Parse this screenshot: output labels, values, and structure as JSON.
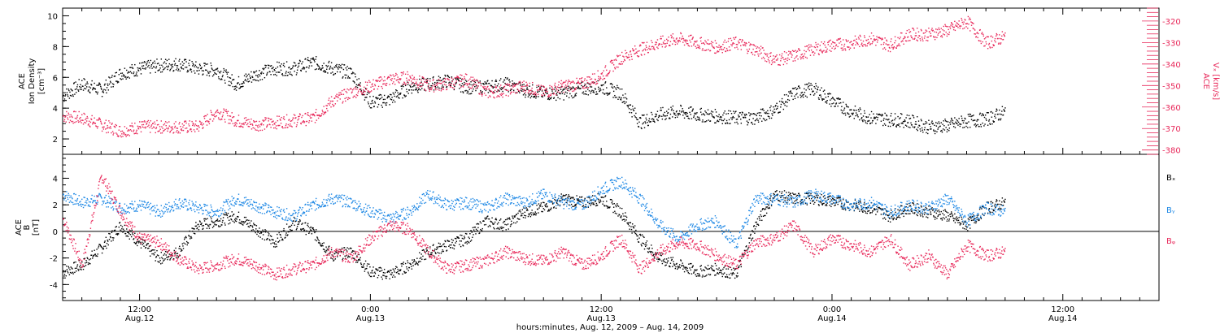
{
  "colors": {
    "black": "#000000",
    "red": "#e8285a",
    "blue": "#1e88e5"
  },
  "footer": "hours:minutes, Aug. 12, 2009 – Aug. 14, 2009",
  "chart_data": [
    {
      "type": "scatter",
      "panel": "top",
      "ylabel_left": [
        "ACE",
        "Ion Density",
        "[cm⁻³]"
      ],
      "ylabel_right": [
        "ACE",
        "Vₓ [km/s]"
      ],
      "ylim_left": [
        1,
        10.5
      ],
      "yticks_left": [
        2,
        4,
        6,
        8,
        10
      ],
      "ylim_right": [
        -382,
        -314
      ],
      "yticks_right": [
        -320,
        -330,
        -340,
        -350,
        -360,
        -370,
        -380
      ],
      "x_range_hours": [
        8,
        65
      ],
      "series": [
        {
          "name": "Ion Density",
          "color": "#000000",
          "axis": "left",
          "x": [
            8,
            9,
            10,
            11,
            12,
            13,
            14,
            15,
            16,
            17,
            18,
            19,
            20,
            21,
            22,
            23,
            24,
            25,
            26,
            27,
            28,
            29,
            30,
            31,
            32,
            33,
            34,
            35,
            36,
            37,
            38,
            39,
            40,
            41,
            42,
            43,
            44,
            45,
            46,
            47,
            48,
            49,
            50,
            51,
            52,
            53,
            54,
            55,
            56,
            57
          ],
          "y": [
            4.8,
            5.6,
            5.2,
            6.3,
            6.6,
            6.8,
            6.9,
            6.6,
            6.5,
            5.6,
            6.2,
            6.6,
            6.6,
            7.0,
            6.6,
            6.3,
            4.4,
            4.6,
            5.4,
            5.6,
            5.8,
            5.4,
            5.4,
            5.6,
            5.2,
            5.0,
            5.0,
            5.3,
            5.4,
            5.0,
            3.1,
            3.6,
            3.8,
            3.6,
            3.5,
            3.4,
            3.4,
            3.9,
            5.0,
            5.3,
            4.5,
            3.8,
            3.4,
            3.3,
            3.2,
            2.8,
            2.9,
            3.2,
            3.3,
            3.8
          ]
        },
        {
          "name": "Vₓ",
          "color": "#e8285a",
          "axis": "right",
          "x": [
            8,
            9,
            10,
            11,
            12,
            13,
            14,
            15,
            16,
            17,
            18,
            19,
            20,
            21,
            22,
            23,
            24,
            25,
            26,
            27,
            28,
            29,
            30,
            31,
            32,
            33,
            34,
            35,
            36,
            37,
            38,
            39,
            40,
            41,
            42,
            43,
            44,
            45,
            46,
            47,
            48,
            49,
            50,
            51,
            52,
            53,
            54,
            55,
            56,
            57
          ],
          "y": [
            -364,
            -365,
            -368,
            -371,
            -369,
            -369,
            -369,
            -369,
            -362,
            -366,
            -368,
            -367,
            -366,
            -365,
            -357,
            -353,
            -350,
            -347,
            -346,
            -350,
            -349,
            -347,
            -353,
            -352,
            -350,
            -353,
            -350,
            -349,
            -345,
            -337,
            -333,
            -330,
            -328,
            -330,
            -332,
            -330,
            -333,
            -338,
            -336,
            -333,
            -331,
            -330,
            -328,
            -331,
            -326,
            -326,
            -324,
            -320,
            -330,
            -327
          ]
        }
      ]
    },
    {
      "type": "scatter",
      "panel": "bottom",
      "ylabel_left": [
        "ACE",
        "B",
        "[nT]"
      ],
      "ylim": [
        -5.2,
        5.8
      ],
      "yticks": [
        -4,
        -2,
        0,
        2,
        4
      ],
      "x_range_hours": [
        8,
        65
      ],
      "xticks": [
        {
          "hour": 12,
          "time": "12:00",
          "date": "Aug.12"
        },
        {
          "hour": 24,
          "time": "0:00",
          "date": "Aug.13"
        },
        {
          "hour": 36,
          "time": "12:00",
          "date": "Aug.13"
        },
        {
          "hour": 48,
          "time": "0:00",
          "date": "Aug.14"
        },
        {
          "hour": 60,
          "time": "12:00",
          "date": "Aug.14"
        }
      ],
      "series": [
        {
          "name": "Bₓ",
          "color": "#000000",
          "x": [
            8,
            9,
            10,
            11,
            12,
            13,
            14,
            15,
            16,
            17,
            18,
            19,
            20,
            21,
            22,
            23,
            24,
            25,
            26,
            27,
            28,
            29,
            30,
            31,
            32,
            33,
            34,
            35,
            36,
            37,
            38,
            39,
            40,
            41,
            42,
            43,
            44,
            45,
            46,
            47,
            48,
            49,
            50,
            51,
            52,
            53,
            54,
            55,
            56,
            57
          ],
          "y": [
            -3.0,
            -2.5,
            -1.2,
            0.5,
            -0.8,
            -2.0,
            -1.5,
            0.5,
            0.8,
            1.2,
            0.3,
            -0.8,
            0.7,
            0.0,
            -1.8,
            -1.5,
            -3.0,
            -3.2,
            -2.5,
            -1.5,
            -1.0,
            -0.5,
            0.8,
            0.5,
            1.5,
            1.8,
            2.5,
            2.2,
            2.5,
            1.5,
            -0.5,
            -2.0,
            -2.5,
            -3.0,
            -2.8,
            -3.2,
            0.5,
            2.8,
            2.5,
            2.5,
            2.3,
            2.0,
            1.8,
            1.2,
            1.8,
            1.5,
            1.2,
            0.5,
            1.8,
            2.2
          ]
        },
        {
          "name": "Bᵧ",
          "color": "#1e88e5",
          "x": [
            8,
            9,
            10,
            11,
            12,
            13,
            14,
            15,
            16,
            17,
            18,
            19,
            20,
            21,
            22,
            23,
            24,
            25,
            26,
            27,
            28,
            29,
            30,
            31,
            32,
            33,
            34,
            35,
            36,
            37,
            38,
            39,
            40,
            41,
            42,
            43,
            44,
            45,
            46,
            47,
            48,
            49,
            50,
            51,
            52,
            53,
            54,
            55,
            56,
            57
          ],
          "y": [
            2.8,
            2.2,
            2.5,
            1.8,
            2.0,
            1.5,
            2.2,
            1.8,
            1.5,
            2.5,
            2.0,
            1.5,
            1.2,
            2.0,
            2.5,
            2.2,
            1.5,
            1.0,
            1.5,
            2.8,
            2.0,
            2.2,
            1.8,
            2.5,
            2.2,
            2.8,
            2.2,
            2.0,
            3.2,
            3.8,
            2.5,
            0.5,
            -0.5,
            0.5,
            0.8,
            -1.0,
            2.5,
            2.5,
            2.2,
            2.8,
            2.5,
            2.0,
            2.2,
            1.5,
            2.0,
            1.8,
            2.5,
            0.8,
            1.8,
            1.5
          ]
        },
        {
          "name": "Bᵩ",
          "color": "#e8285a",
          "x": [
            8,
            9,
            10,
            11,
            12,
            13,
            14,
            15,
            16,
            17,
            18,
            19,
            20,
            21,
            22,
            23,
            24,
            25,
            26,
            27,
            28,
            29,
            30,
            31,
            32,
            33,
            34,
            35,
            36,
            37,
            38,
            39,
            40,
            41,
            42,
            43,
            44,
            45,
            46,
            47,
            48,
            49,
            50,
            51,
            52,
            53,
            54,
            55,
            56,
            57
          ],
          "y": [
            1.0,
            -2.5,
            4.2,
            1.5,
            -0.5,
            -0.8,
            -2.0,
            -2.8,
            -2.5,
            -2.0,
            -2.5,
            -3.2,
            -2.8,
            -2.5,
            -1.5,
            -2.0,
            -0.5,
            0.5,
            0.2,
            -1.5,
            -2.8,
            -2.5,
            -2.2,
            -1.5,
            -2.0,
            -2.2,
            -1.5,
            -2.5,
            -1.8,
            -0.5,
            -2.8,
            -1.5,
            -0.8,
            -1.0,
            -1.8,
            -2.5,
            -0.8,
            -0.5,
            0.5,
            -1.5,
            -0.5,
            -1.0,
            -1.5,
            -0.5,
            -2.5,
            -1.8,
            -3.2,
            -1.0,
            -1.8,
            -1.5
          ]
        }
      ]
    }
  ]
}
